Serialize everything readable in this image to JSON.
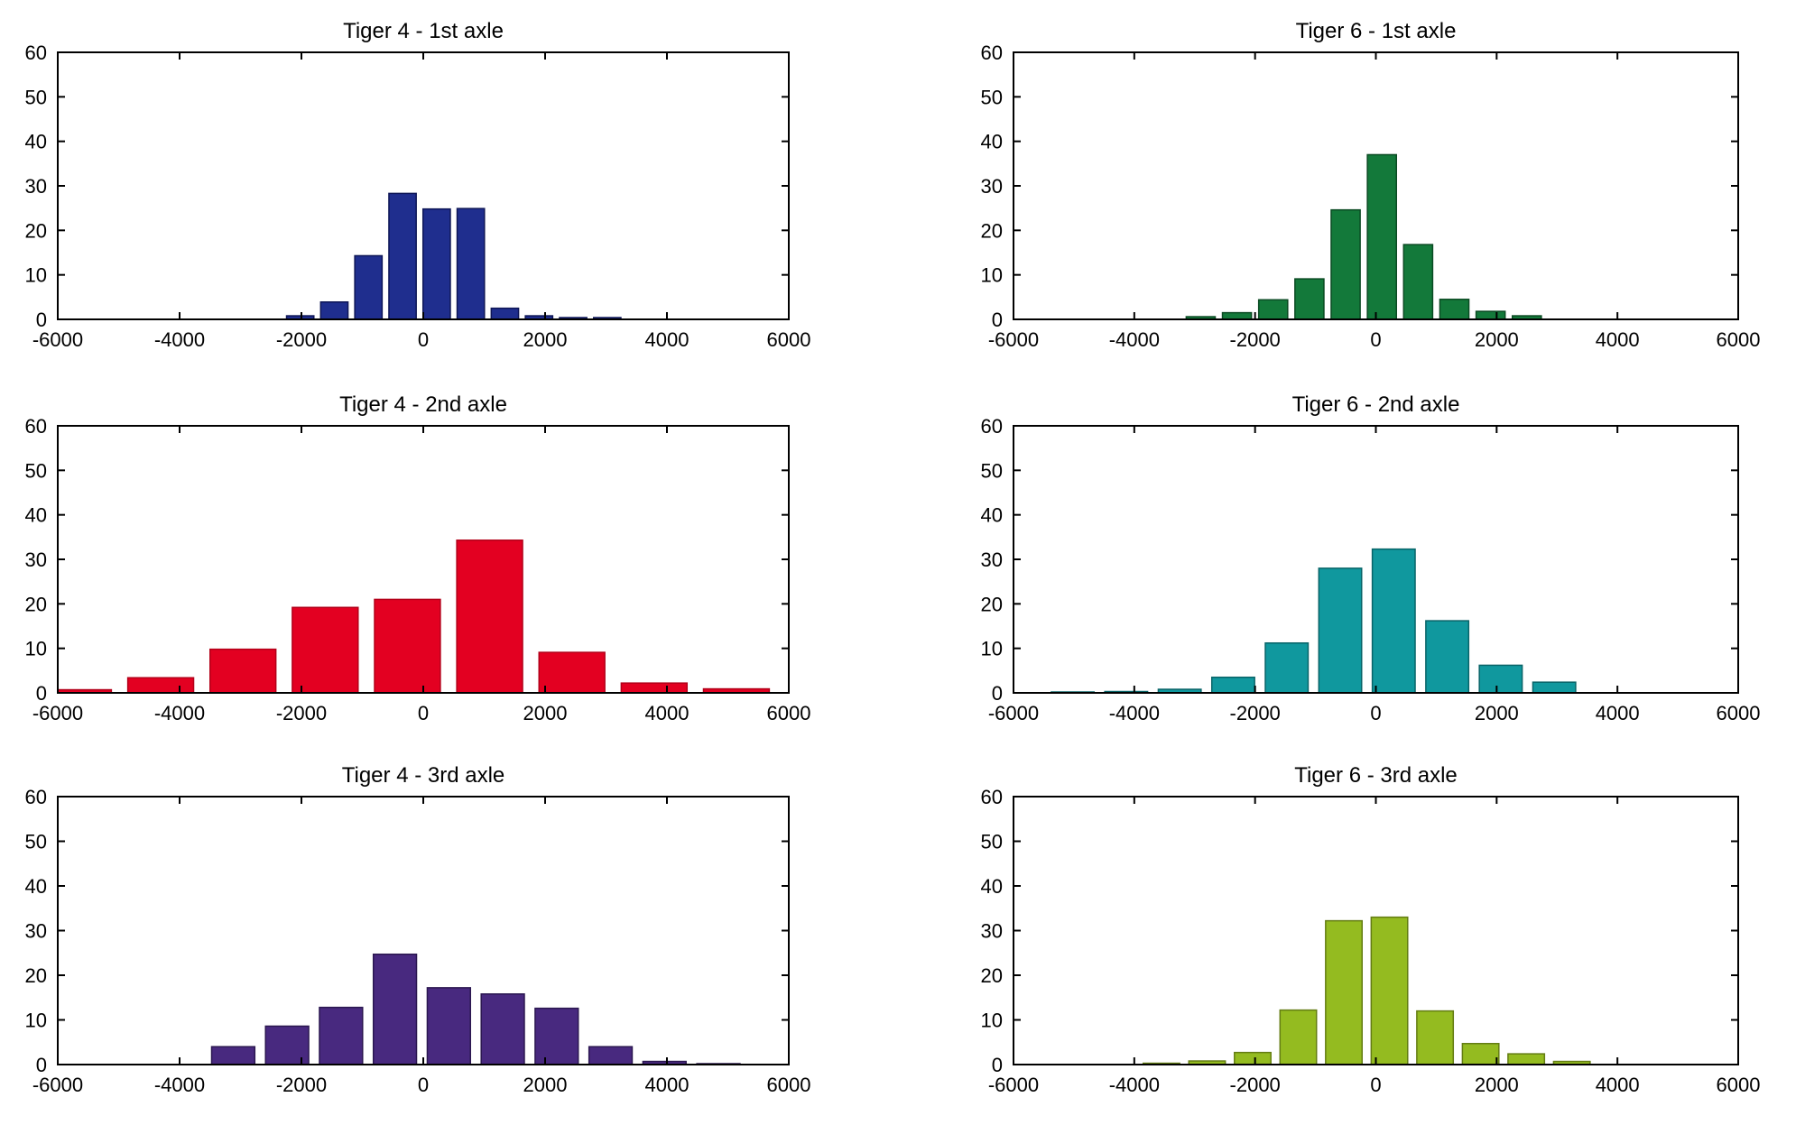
{
  "figure": {
    "background": "#ffffff",
    "axis_color": "#000000"
  },
  "chart_data": [
    {
      "type": "histogram",
      "title": "Tiger 4 - 1st axle",
      "bar_color": "#1f2e8e",
      "edge_color": "#0e1656",
      "xlim": [
        -6000,
        6000
      ],
      "ylim": [
        0,
        60
      ],
      "x_ticks": [
        -6000,
        -4000,
        -2000,
        0,
        2000,
        4000,
        6000
      ],
      "y_ticks": [
        0,
        10,
        20,
        30,
        40,
        50,
        60
      ],
      "grid": false,
      "legend": null,
      "bin_width": 560,
      "bar_frac": 0.8,
      "bin_centers": [
        -2020,
        -1460,
        -900,
        -340,
        220,
        780,
        1340,
        1900,
        2460,
        3020
      ],
      "values": [
        0.8,
        3.9,
        14.3,
        28.3,
        24.8,
        24.9,
        2.5,
        0.8,
        0.4,
        0.4
      ]
    },
    {
      "type": "histogram",
      "title": "Tiger 6 - 1st axle",
      "bar_color": "#13793a",
      "edge_color": "#0a4a22",
      "xlim": [
        -6000,
        6000
      ],
      "ylim": [
        0,
        60
      ],
      "x_ticks": [
        -6000,
        -4000,
        -2000,
        0,
        2000,
        4000,
        6000
      ],
      "y_ticks": [
        0,
        10,
        20,
        30,
        40,
        50,
        60
      ],
      "grid": false,
      "legend": null,
      "bin_width": 600,
      "bar_frac": 0.8,
      "bin_centers": [
        -2900,
        -2300,
        -1700,
        -1100,
        -500,
        100,
        700,
        1300,
        1900,
        2500
      ],
      "values": [
        0.6,
        1.5,
        4.4,
        9.1,
        24.6,
        37,
        16.8,
        4.5,
        1.8,
        0.8
      ]
    },
    {
      "type": "histogram",
      "title": "Tiger 4 - 2nd axle",
      "bar_color": "#e30021",
      "edge_color": "#b30019",
      "xlim": [
        -6000,
        6000
      ],
      "ylim": [
        0,
        60
      ],
      "x_ticks": [
        -6000,
        -4000,
        -2000,
        0,
        2000,
        4000,
        6000
      ],
      "y_ticks": [
        0,
        10,
        20,
        30,
        40,
        50,
        60
      ],
      "grid": false,
      "legend": null,
      "bin_width": 1350,
      "bar_frac": 0.8,
      "bin_centers": [
        -5660,
        -4310,
        -2960,
        -1610,
        -260,
        1090,
        2440,
        3790,
        5140
      ],
      "values": [
        0.7,
        3.4,
        9.8,
        19.2,
        21,
        34.3,
        9.1,
        2.2,
        0.9
      ]
    },
    {
      "type": "histogram",
      "title": "Tiger 6 - 2nd axle",
      "bar_color": "#10989e",
      "edge_color": "#096468",
      "xlim": [
        -6000,
        6000
      ],
      "ylim": [
        0,
        60
      ],
      "x_ticks": [
        -6000,
        -4000,
        -2000,
        0,
        2000,
        4000,
        6000
      ],
      "y_ticks": [
        0,
        10,
        20,
        30,
        40,
        50,
        60
      ],
      "grid": false,
      "legend": null,
      "bin_width": 886,
      "bar_frac": 0.8,
      "bin_centers": [
        -5020,
        -4134,
        -3248,
        -2362,
        -1476,
        -590,
        296,
        1182,
        2068,
        2954
      ],
      "values": [
        0.2,
        0.3,
        0.8,
        3.5,
        11.2,
        28,
        32.3,
        16.2,
        6.2,
        2.4
      ]
    },
    {
      "type": "histogram",
      "title": "Tiger 4 - 3rd axle",
      "bar_color": "#48297f",
      "edge_color": "#2b1750",
      "xlim": [
        -6000,
        6000
      ],
      "ylim": [
        0,
        60
      ],
      "x_ticks": [
        -6000,
        -4000,
        -2000,
        0,
        2000,
        4000,
        6000
      ],
      "y_ticks": [
        0,
        10,
        20,
        30,
        40,
        50,
        60
      ],
      "grid": false,
      "legend": null,
      "bin_width": 885,
      "bar_frac": 0.8,
      "bin_centers": [
        -3120,
        -2235,
        -1350,
        -465,
        420,
        1305,
        2190,
        3075,
        3960,
        4845
      ],
      "values": [
        4,
        8.6,
        12.8,
        24.7,
        17.2,
        15.8,
        12.6,
        4,
        0.7,
        0.2
      ]
    },
    {
      "type": "histogram",
      "title": "Tiger 6 - 3rd axle",
      "bar_color": "#94bb20",
      "edge_color": "#647d13",
      "xlim": [
        -6000,
        6000
      ],
      "ylim": [
        0,
        60
      ],
      "x_ticks": [
        -6000,
        -4000,
        -2000,
        0,
        2000,
        4000,
        6000
      ],
      "y_ticks": [
        0,
        10,
        20,
        30,
        40,
        50,
        60
      ],
      "grid": false,
      "legend": null,
      "bin_width": 755,
      "bar_frac": 0.8,
      "bin_centers": [
        -3550,
        -2795,
        -2040,
        -1285,
        -530,
        225,
        980,
        1735,
        2490,
        3245
      ],
      "values": [
        0.3,
        0.8,
        2.7,
        12.2,
        32.2,
        33,
        12,
        4.7,
        2.4,
        0.7
      ]
    }
  ]
}
